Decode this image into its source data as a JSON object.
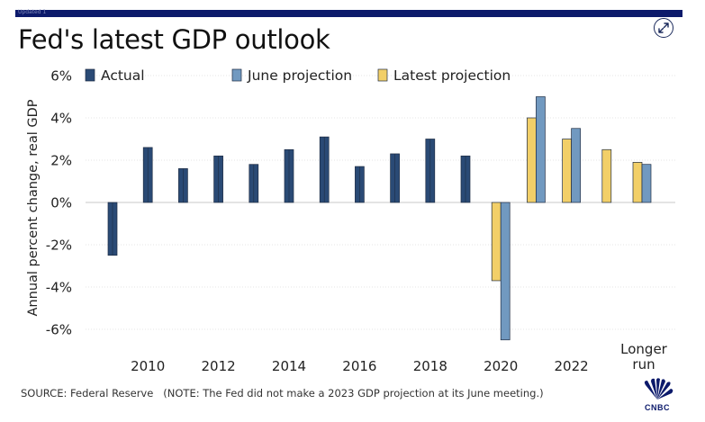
{
  "header": {
    "tag": "Updated 1",
    "title": "Fed's latest GDP outlook",
    "expand_icon": "expand-arrows-icon"
  },
  "footer": {
    "source": "SOURCE: Federal Reserve",
    "note": "(NOTE: The Fed did not make a 2023 GDP projection at its June meeting.)",
    "logo": "CNBC",
    "logo_icon": "cnbc-peacock-icon"
  },
  "chart_data": {
    "type": "bar",
    "title": "Fed's latest GDP outlook",
    "ylabel": "Annual percent change, real GDP",
    "xlabel": "",
    "ylim": [
      -7,
      6
    ],
    "yticks": [
      "6%",
      "4%",
      "2%",
      "0%",
      "-2%",
      "-4%",
      "-6%"
    ],
    "ytick_values": [
      6,
      4,
      2,
      0,
      -2,
      -4,
      -6
    ],
    "grid": true,
    "legend_placement": "top",
    "categories": [
      "2009",
      "2010",
      "2011",
      "2012",
      "2013",
      "2014",
      "2015",
      "2016",
      "2017",
      "2018",
      "2019",
      "2020",
      "2021",
      "2022",
      "2023",
      "Longer run"
    ],
    "xtick_labels": [
      {
        "category": "2010",
        "text": "2010"
      },
      {
        "category": "2012",
        "text": "2012"
      },
      {
        "category": "2014",
        "text": "2014"
      },
      {
        "category": "2016",
        "text": "2016"
      },
      {
        "category": "2018",
        "text": "2018"
      },
      {
        "category": "2020",
        "text": "2020"
      },
      {
        "category": "2022",
        "text": "2022"
      },
      {
        "category": "Longer run",
        "text": "Longer run"
      }
    ],
    "series": [
      {
        "name": "Actual",
        "color": "#2a4a75",
        "values": [
          -2.5,
          2.6,
          1.6,
          2.2,
          1.8,
          2.5,
          3.1,
          1.7,
          2.3,
          3.0,
          2.2,
          null,
          null,
          null,
          null,
          null
        ]
      },
      {
        "name": "Latest projection",
        "color": "#f2cf68",
        "values": [
          null,
          null,
          null,
          null,
          null,
          null,
          null,
          null,
          null,
          null,
          null,
          -3.7,
          4.0,
          3.0,
          2.5,
          1.9
        ]
      },
      {
        "name": "June projection",
        "color": "#7199c0",
        "values": [
          null,
          null,
          null,
          null,
          null,
          null,
          null,
          null,
          null,
          null,
          null,
          -6.5,
          5.0,
          3.5,
          null,
          1.8
        ]
      }
    ],
    "legend_order": [
      "Actual",
      "June projection",
      "Latest projection"
    ]
  }
}
